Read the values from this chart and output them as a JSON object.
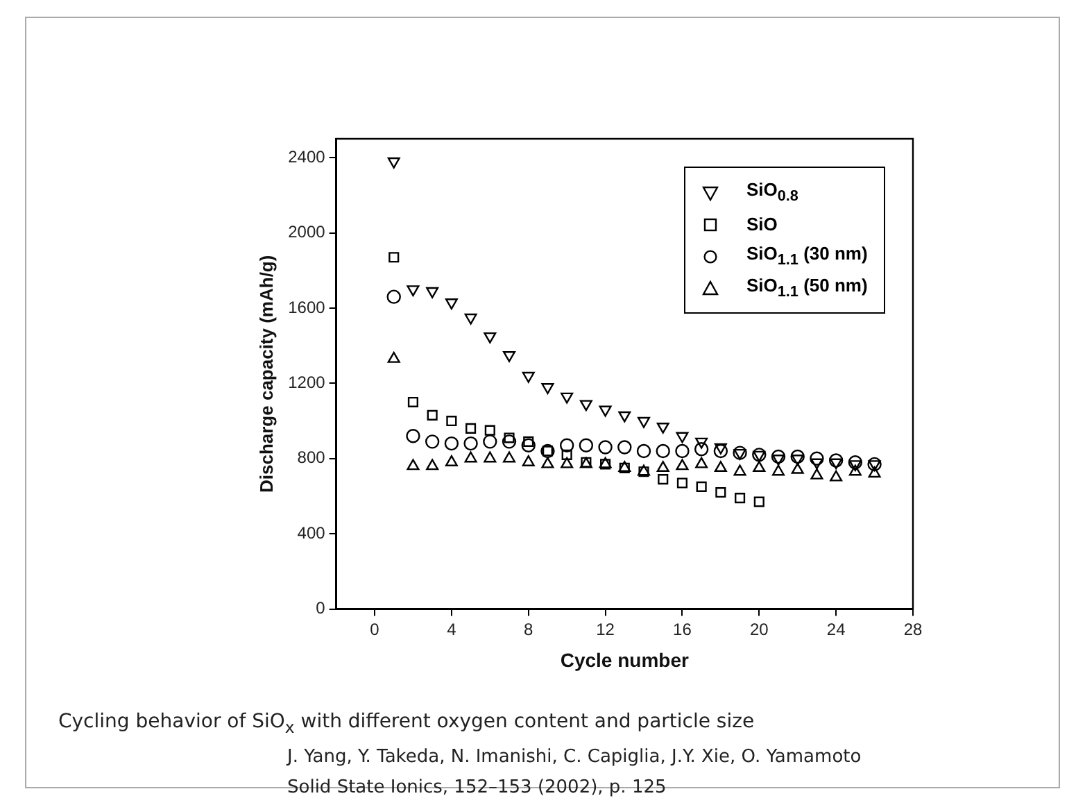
{
  "chart_data": {
    "type": "scatter",
    "xlabel": "Cycle number",
    "ylabel": "Discharge capacity (mAh/g)",
    "x": [
      1,
      2,
      3,
      4,
      5,
      6,
      7,
      8,
      9,
      10,
      11,
      12,
      13,
      14,
      15,
      16,
      17,
      18,
      19,
      20,
      21,
      22,
      23,
      24,
      25,
      26
    ],
    "xlim": [
      -2,
      28
    ],
    "xticks": [
      0,
      4,
      8,
      12,
      16,
      20,
      24,
      28
    ],
    "ylim": [
      0,
      2500
    ],
    "yticks": [
      0,
      400,
      800,
      1200,
      1600,
      2000,
      2400
    ],
    "legend": "top right",
    "grid": false,
    "series": [
      {
        "name": "SiO$_{0.8}$",
        "color": "#000000",
        "marker": "triangle-down",
        "values": [
          2380,
          1700,
          1690,
          1630,
          1550,
          1450,
          1350,
          1240,
          1180,
          1130,
          1090,
          1060,
          1030,
          1000,
          970,
          920,
          890,
          860,
          830,
          820,
          800,
          800,
          780,
          780,
          770,
          770
        ]
      },
      {
        "name": "SiO",
        "color": "#000000",
        "marker": "square",
        "values": [
          1870,
          1100,
          1030,
          1000,
          960,
          950,
          910,
          890,
          840,
          820,
          780,
          770,
          750,
          730,
          690,
          670,
          650,
          620,
          590,
          570,
          null,
          null,
          null,
          null,
          null,
          null
        ]
      },
      {
        "name": "SiO$_{1.1}$ (30 nm)",
        "color": "#000000",
        "marker": "circle",
        "values": [
          1660,
          920,
          890,
          880,
          880,
          890,
          890,
          870,
          840,
          870,
          870,
          860,
          860,
          840,
          840,
          840,
          850,
          840,
          830,
          820,
          810,
          810,
          800,
          790,
          780,
          770
        ]
      },
      {
        "name": "SiO$_{1.1}$ (50 nm)",
        "color": "#000000",
        "marker": "triangle",
        "values": [
          1330,
          760,
          760,
          780,
          800,
          800,
          800,
          780,
          770,
          770,
          770,
          770,
          750,
          730,
          750,
          760,
          770,
          750,
          730,
          750,
          730,
          740,
          710,
          700,
          730,
          720
        ]
      }
    ],
    "annotations": [
      "Cycling behavior of SiO$_{x}$ with different oxygen content and particle size",
      "J. Yang, Y. Takeda, N. Imanishi, C. Capiglia, J.Y. Xie, O. Yamamoto",
      "Solid State Ionics, 152–153 (2002), p. 125"
    ]
  }
}
